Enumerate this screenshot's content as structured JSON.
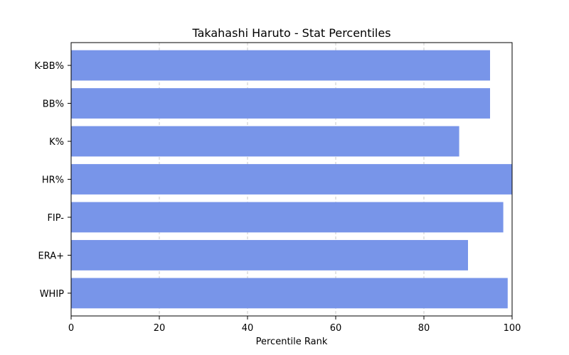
{
  "chart_data": {
    "type": "bar",
    "orientation": "horizontal",
    "title": "Takahashi Haruto - Stat Percentiles",
    "xlabel": "Percentile Rank",
    "ylabel": "",
    "categories": [
      "K-BB%",
      "BB%",
      "K%",
      "HR%",
      "FIP-",
      "ERA+",
      "WHIP"
    ],
    "values": [
      95,
      95,
      88,
      100,
      98,
      90,
      99
    ],
    "xlim": [
      0,
      100
    ],
    "xticks": [
      "0",
      "20",
      "40",
      "60",
      "80",
      "100"
    ],
    "grid": "vertical dashed",
    "colors": {
      "bar": "#7895e9",
      "grid": "#c8c8c8",
      "axis": "#000000"
    }
  }
}
